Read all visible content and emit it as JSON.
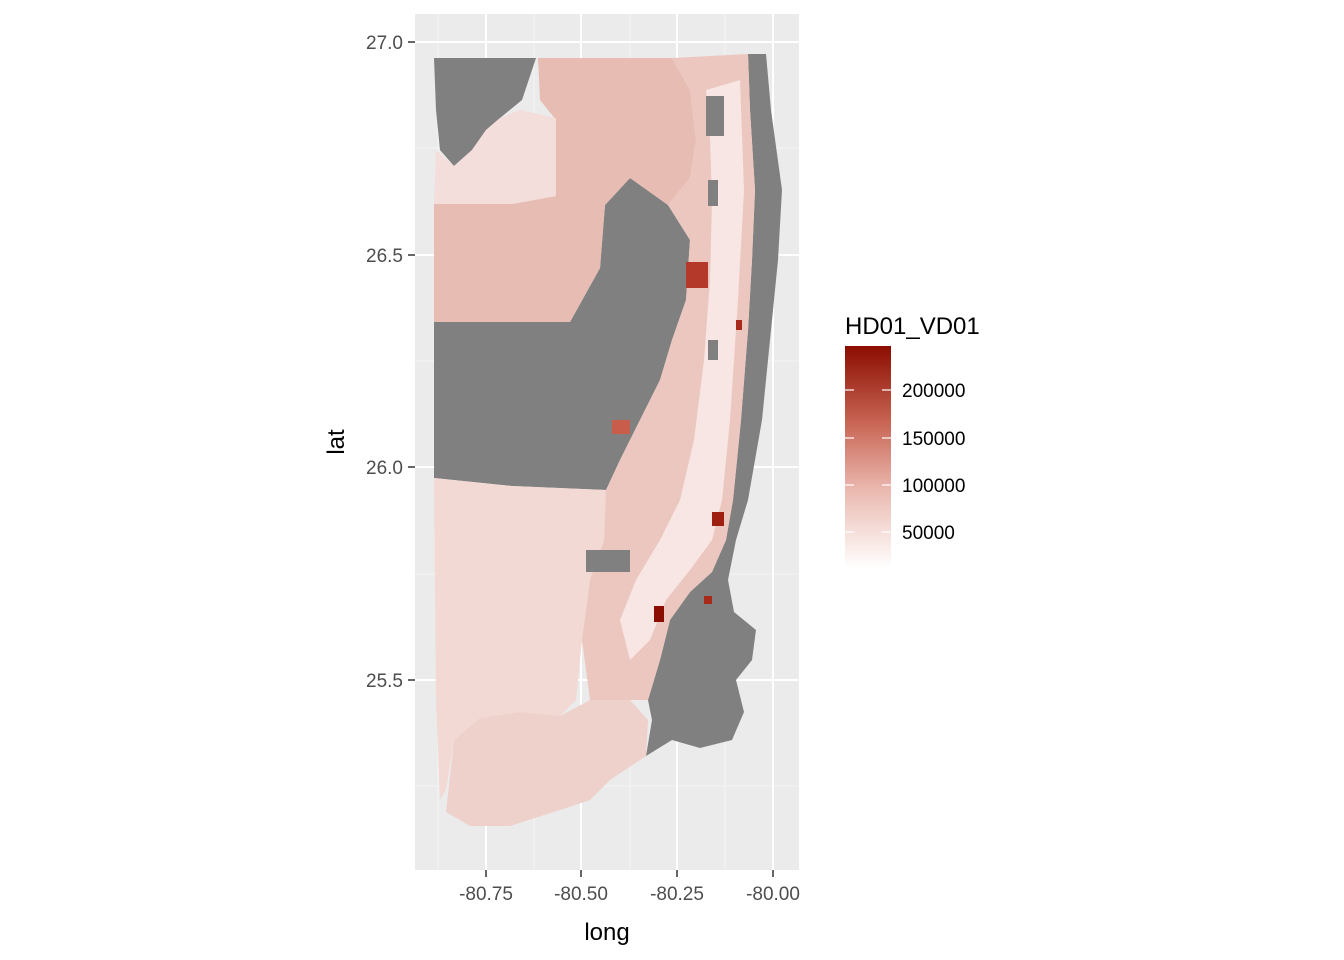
{
  "chart_data": {
    "type": "choropleth-map",
    "xlabel": "long",
    "ylabel": "lat",
    "xlim": [
      -80.94,
      -79.93
    ],
    "ylim": [
      25.07,
      27.07
    ],
    "x_ticks": [
      {
        "value": -80.75,
        "label": "-80.75"
      },
      {
        "value": -80.5,
        "label": "-80.50"
      },
      {
        "value": -80.25,
        "label": "-80.25"
      },
      {
        "value": -80.0,
        "label": "-80.00"
      }
    ],
    "y_ticks": [
      {
        "value": 25.5,
        "label": "25.5"
      },
      {
        "value": 26.0,
        "label": "26.0"
      },
      {
        "value": 26.5,
        "label": "26.5"
      },
      {
        "value": 27.0,
        "label": "27.0"
      }
    ],
    "grid": true,
    "panel_background": "#ebebeb",
    "na_color": "#808080",
    "legend": {
      "title": "HD01_VD01",
      "position": "right",
      "range": [
        0,
        245000
      ],
      "low_color": "#ffffff",
      "high_color": "#8b0d00",
      "breaks": [
        {
          "value": 50000,
          "label": "50000"
        },
        {
          "value": 100000,
          "label": "100000"
        },
        {
          "value": 150000,
          "label": "150000"
        },
        {
          "value": 200000,
          "label": "200000"
        }
      ]
    },
    "regions": [
      {
        "id": "palm-beach-west",
        "value": 40000
      },
      {
        "id": "palm-beach-lake",
        "value": null
      },
      {
        "id": "palm-beach-nw",
        "value": 20000
      },
      {
        "id": "broward-west",
        "value": null
      },
      {
        "id": "broward-wca",
        "value": null
      },
      {
        "id": "miami-dade-west",
        "value": 22000
      },
      {
        "id": "miami-dade-south",
        "value": 28000
      },
      {
        "id": "coastal-strip",
        "value": 45000
      },
      {
        "id": "ocean",
        "value": null
      },
      {
        "id": "biscayne-bay",
        "value": null
      },
      {
        "id": "hotspot-1",
        "value": 180000
      },
      {
        "id": "hotspot-2",
        "value": 230000
      },
      {
        "id": "hotspot-3",
        "value": 240000
      }
    ]
  }
}
